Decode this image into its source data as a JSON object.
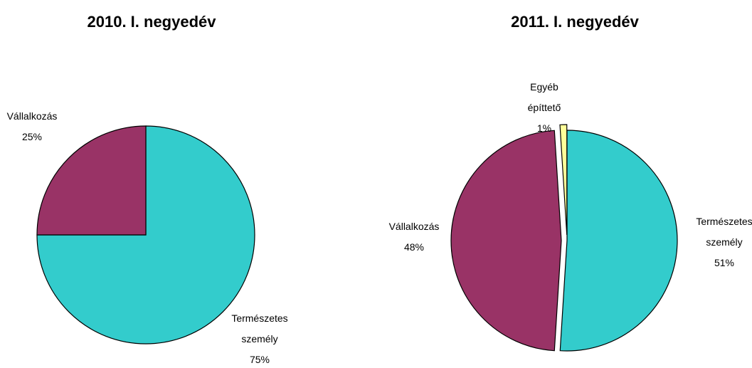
{
  "chart_data": [
    {
      "type": "pie",
      "title": "2010. I. negyedév",
      "categories": [
        "Természetes személy",
        "Vállalkozás"
      ],
      "values": [
        75,
        25
      ],
      "value_labels": [
        "75%",
        "25%"
      ],
      "colors": [
        "#33cccc",
        "#993366"
      ]
    },
    {
      "type": "pie",
      "title": "2011. I. negyedév",
      "categories": [
        "Természetes személy",
        "Vállalkozás",
        "Egyéb építtető"
      ],
      "values": [
        51,
        48,
        1
      ],
      "value_labels": [
        "51%",
        "48%",
        "1%"
      ],
      "colors": [
        "#33cccc",
        "#993366",
        "#ffff99"
      ]
    }
  ]
}
